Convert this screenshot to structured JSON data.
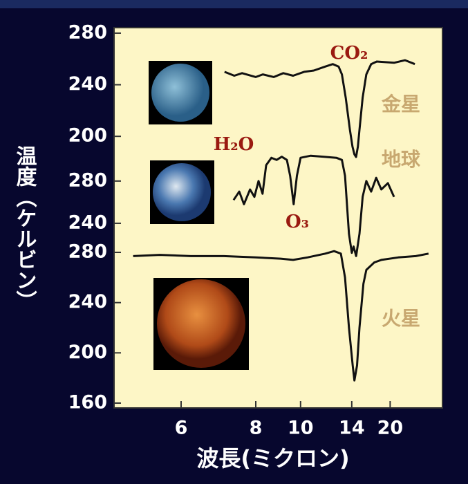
{
  "chart_data": {
    "type": "line",
    "xlabel": "波長(ミクロン)",
    "ylabel": "温度（ケルビン）",
    "xscale": "reciprocal",
    "xlim": [
      4.9,
      48
    ],
    "xticks": [
      6,
      8,
      10,
      14,
      20
    ],
    "color": "#111111",
    "panels": [
      {
        "label": "金星",
        "ylim": [
          180,
          285
        ],
        "yticks": [
          200,
          240,
          280
        ],
        "annotations": [
          "CO₂"
        ],
        "x": [
          7.02,
          7.3,
          7.54,
          8.0,
          8.26,
          8.7,
          9.12,
          9.6,
          10.2,
          10.8,
          11.57,
          12.2,
          12.7,
          13.0,
          13.37,
          13.8,
          14.08,
          14.3,
          14.49,
          14.7,
          14.9,
          15.3,
          15.8,
          16.5,
          17.4,
          20.9,
          24,
          27.6
        ],
        "values": [
          250,
          247,
          249,
          246,
          248,
          246,
          249,
          247,
          250,
          251,
          254,
          256,
          254,
          248,
          230,
          205,
          192,
          186,
          184,
          192,
          205,
          230,
          248,
          256,
          258,
          257,
          259,
          256
        ]
      },
      {
        "label": "地球",
        "ylim": [
          205,
          310
        ],
        "yticks": [
          240,
          280
        ],
        "annotations": [
          "H₂O",
          "O₃"
        ],
        "x": [
          7.28,
          7.45,
          7.6,
          7.8,
          7.95,
          8.1,
          8.25,
          8.39,
          8.6,
          8.82,
          9.05,
          9.29,
          9.45,
          9.63,
          9.8,
          10.0,
          10.6,
          11.5,
          12.5,
          13.0,
          13.3,
          13.7,
          14.0,
          14.2,
          14.5,
          14.9,
          15.3,
          15.8,
          16.5,
          17.3,
          18.2,
          19.5,
          20.9
        ],
        "values": [
          262,
          270,
          258,
          272,
          265,
          280,
          268,
          295,
          302,
          300,
          303,
          300,
          285,
          258,
          285,
          302,
          304,
          303,
          302,
          300,
          285,
          230,
          212,
          218,
          209,
          230,
          265,
          280,
          270,
          283,
          272,
          278,
          265
        ]
      },
      {
        "label": "火星",
        "ylim": [
          160,
          285
        ],
        "yticks": [
          160,
          200,
          240,
          280
        ],
        "annotations": [],
        "x": [
          5.17,
          5.6,
          6.2,
          7.0,
          8.0,
          9.0,
          9.6,
          10.4,
          11.6,
          12.3,
          12.9,
          13.3,
          13.7,
          14.1,
          14.3,
          14.6,
          14.9,
          15.4,
          15.8,
          17,
          18.2,
          22,
          28,
          35
        ],
        "values": [
          277,
          278,
          277,
          277,
          276,
          275,
          274,
          276,
          279,
          281,
          279,
          260,
          220,
          190,
          178,
          190,
          220,
          255,
          266,
          272,
          274,
          276,
          277,
          279
        ]
      }
    ]
  }
}
